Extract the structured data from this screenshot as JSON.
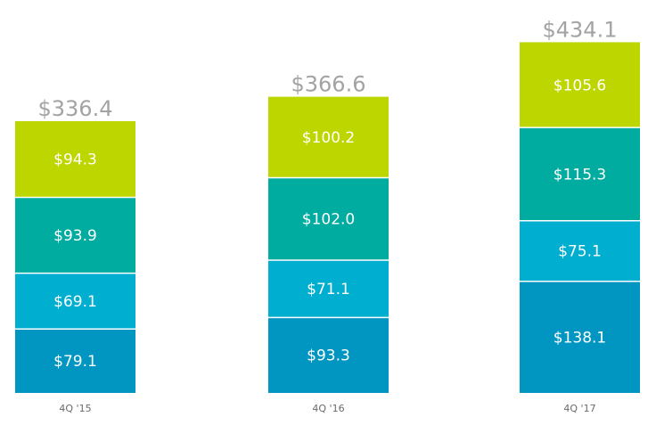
{
  "chart_data": {
    "type": "bar",
    "stacked": true,
    "categories": [
      "4Q '15",
      "4Q '16",
      "4Q '17"
    ],
    "series": [
      {
        "values": [
          79.1,
          93.3,
          138.1
        ],
        "labels": [
          "$79.1",
          "$93.3",
          "$138.1"
        ],
        "color": "#0096c1"
      },
      {
        "values": [
          69.1,
          71.1,
          75.1
        ],
        "labels": [
          "$69.1",
          "$71.1",
          "$75.1"
        ],
        "color": "#00aed0"
      },
      {
        "values": [
          93.9,
          102.0,
          115.3
        ],
        "labels": [
          "$93.9",
          "$102.0",
          "$115.3"
        ],
        "color": "#00ab9f"
      },
      {
        "values": [
          94.3,
          100.2,
          105.6
        ],
        "labels": [
          "$94.3",
          "$100.2",
          "$105.6"
        ],
        "color": "#bed600"
      }
    ],
    "totals": [
      "$336.4",
      "$366.6",
      "$434.1"
    ],
    "total_color": "#a3a3a3",
    "divider_color": "#ffffff",
    "legend": "none",
    "grid": false
  }
}
